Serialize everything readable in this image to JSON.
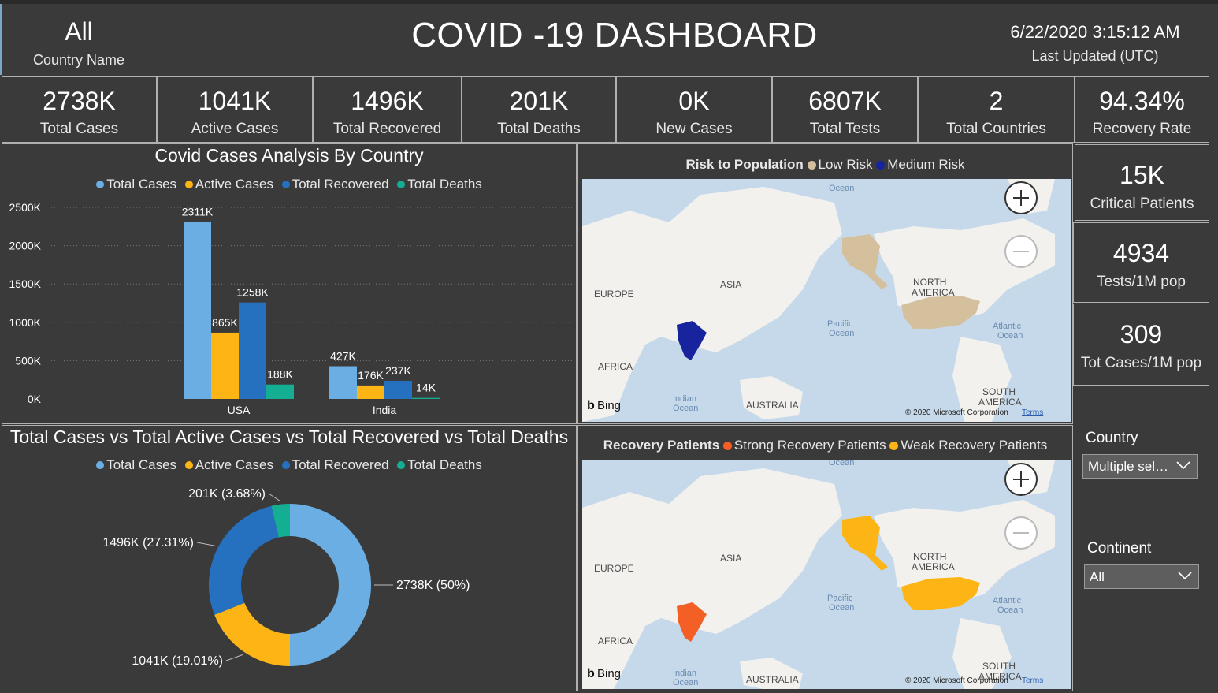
{
  "header": {
    "country_value": "All",
    "country_label": "Country Name",
    "title": "COVID -19 DASHBOARD",
    "updated_time": "6/22/2020 3:15:12 AM",
    "updated_label": "Last Updated (UTC)"
  },
  "kpis": [
    {
      "value": "2738K",
      "label": "Total Cases"
    },
    {
      "value": "1041K",
      "label": "Active Cases"
    },
    {
      "value": "1496K",
      "label": "Total Recovered"
    },
    {
      "value": "201K",
      "label": "Total Deaths"
    },
    {
      "value": "0K",
      "label": "New Cases"
    },
    {
      "value": "6807K",
      "label": "Total Tests"
    },
    {
      "value": "2",
      "label": "Total Countries"
    },
    {
      "value": "94.34%",
      "label": "Recovery Rate"
    }
  ],
  "side_kpis": [
    {
      "value": "15K",
      "label": "Critical Patients"
    },
    {
      "value": "4934",
      "label": "Tests/1M pop"
    },
    {
      "value": "309",
      "label": "Tot Cases/1M pop"
    }
  ],
  "bar_panel": {
    "title": "Covid Cases Analysis By Country",
    "legend": [
      "Total Cases",
      "Active Cases",
      "Total Recovered",
      "Total Deaths"
    ]
  },
  "donut_panel": {
    "title": "Total Cases vs Total Active Cases vs Total Recovered vs Total Deaths",
    "legend": [
      "Total Cases",
      "Active Cases",
      "Total Recovered",
      "Total Deaths"
    ]
  },
  "colors": {
    "total_cases": "#6aaee3",
    "active_cases": "#fdb515",
    "total_recovered": "#2671bf",
    "total_deaths": "#14ae92",
    "low_risk": "#d4c09c",
    "medium_risk": "#18249e",
    "strong_recovery": "#f45f25",
    "weak_recovery": "#fdb515"
  },
  "chart_data": [
    {
      "type": "bar",
      "title": "Covid Cases Analysis By Country",
      "categories": [
        "USA",
        "India"
      ],
      "series": [
        {
          "name": "Total Cases",
          "values": [
            2311,
            427
          ],
          "labels": [
            "2311K",
            "427K"
          ]
        },
        {
          "name": "Active Cases",
          "values": [
            865,
            176
          ],
          "labels": [
            "865K",
            "176K"
          ]
        },
        {
          "name": "Total Recovered",
          "values": [
            1258,
            237
          ],
          "labels": [
            "1258K",
            "237K"
          ]
        },
        {
          "name": "Total Deaths",
          "values": [
            188,
            14
          ],
          "labels": [
            "188K",
            "14K"
          ]
        }
      ],
      "ylim": [
        0,
        2500
      ],
      "yticks": [
        "0K",
        "500K",
        "1000K",
        "1500K",
        "2000K",
        "2500K"
      ],
      "grid": true,
      "legend": "top"
    },
    {
      "type": "pie",
      "title": "Total Cases vs Total Active Cases vs Total Recovered vs Total Deaths",
      "slices": [
        {
          "name": "Total Cases",
          "value": 2738,
          "label": "2738K (50%)"
        },
        {
          "name": "Active Cases",
          "value": 1041,
          "label": "1041K (19.01%)"
        },
        {
          "name": "Total Recovered",
          "value": 1496,
          "label": "1496K (27.31%)"
        },
        {
          "name": "Total Deaths",
          "value": 201,
          "label": "201K (3.68%)"
        }
      ],
      "legend": "top"
    }
  ],
  "maps": {
    "risk": {
      "title": "Risk to Population",
      "legend": [
        "Low Risk",
        "Medium Risk"
      ]
    },
    "recovery": {
      "title": "Recovery Patients",
      "legend": [
        "Strong Recovery Patients",
        "Weak Recovery Patients"
      ]
    },
    "labels": {
      "asia": "ASIA",
      "europe": "EUROPE",
      "africa": "AFRICA",
      "australia": "AUSTRALIA",
      "north_america": "NORTH\nAMERICA",
      "south_america": "SOUTH\nAMERICA",
      "pacific": "Pacific\nOcean",
      "atlantic": "Atlantic\nOcean",
      "indian": "Indian\nOcean",
      "arctic": "Arctic\nOcean",
      "copyright": "© 2020 Microsoft Corporation",
      "terms": "Terms",
      "bing": "Bing"
    }
  },
  "slicers": {
    "country_label": "Country",
    "country_value": "Multiple sel…",
    "continent_label": "Continent",
    "continent_value": "All"
  }
}
